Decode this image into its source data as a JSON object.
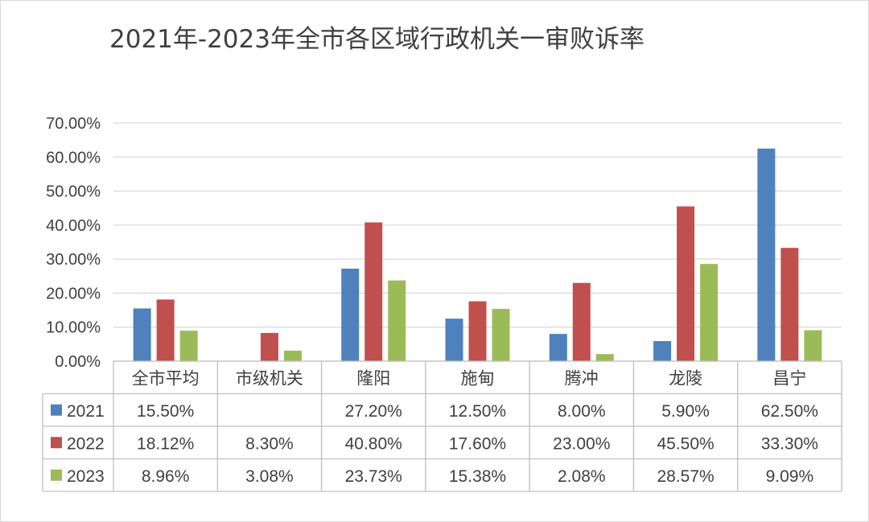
{
  "chart_data": {
    "type": "bar",
    "title": "2021年-2023年全市各区域行政机关一审败诉率",
    "categories": [
      "全市平均",
      "市级机关",
      "隆阳",
      "施甸",
      "腾冲",
      "龙陵",
      "昌宁"
    ],
    "ylim": [
      0,
      70
    ],
    "yticks": [
      0,
      10,
      20,
      30,
      40,
      50,
      60,
      70
    ],
    "ytick_labels": [
      "0.00%",
      "10.00%",
      "20.00%",
      "30.00%",
      "40.00%",
      "50.00%",
      "60.00%",
      "70.00%"
    ],
    "grid": true,
    "legend": "data-table",
    "series": [
      {
        "name": "2021",
        "color": "#4f81bd",
        "values": [
          15.5,
          null,
          27.2,
          12.5,
          8.0,
          5.9,
          62.5
        ],
        "labels": [
          "15.50%",
          "",
          "27.20%",
          "12.50%",
          "8.00%",
          "5.90%",
          "62.50%"
        ]
      },
      {
        "name": "2022",
        "color": "#c0504d",
        "values": [
          18.12,
          8.3,
          40.8,
          17.6,
          23.0,
          45.5,
          33.3
        ],
        "labels": [
          "18.12%",
          "8.30%",
          "40.80%",
          "17.60%",
          "23.00%",
          "45.50%",
          "33.30%"
        ]
      },
      {
        "name": "2023",
        "color": "#9bbb59",
        "values": [
          8.96,
          3.08,
          23.73,
          15.38,
          2.08,
          28.57,
          9.09
        ],
        "labels": [
          "8.96%",
          "3.08%",
          "23.73%",
          "15.38%",
          "2.08%",
          "28.57%",
          "9.09%"
        ]
      }
    ]
  }
}
